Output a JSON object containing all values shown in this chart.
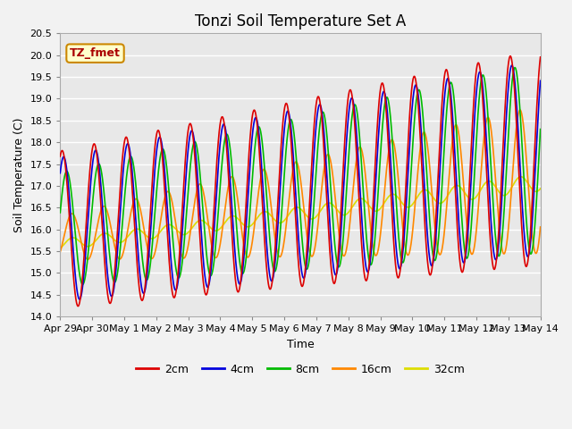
{
  "title": "Tonzi Soil Temperature Set A",
  "xlabel": "Time",
  "ylabel": "Soil Temperature (C)",
  "ylim": [
    14.0,
    20.5
  ],
  "xlim": [
    0,
    15
  ],
  "xtick_labels": [
    "Apr 29",
    "Apr 30",
    "May 1",
    "May 2",
    "May 3",
    "May 4",
    "May 5",
    "May 6",
    "May 7",
    "May 8",
    "May 9",
    "May 10",
    "May 11",
    "May 12",
    "May 13",
    "May 14"
  ],
  "xtick_positions": [
    0,
    1,
    2,
    3,
    4,
    5,
    6,
    7,
    8,
    9,
    10,
    11,
    12,
    13,
    14,
    15
  ],
  "ytick_values": [
    14.0,
    14.5,
    15.0,
    15.5,
    16.0,
    16.5,
    17.0,
    17.5,
    18.0,
    18.5,
    19.0,
    19.5,
    20.0,
    20.5
  ],
  "legend_labels": [
    "2cm",
    "4cm",
    "8cm",
    "16cm",
    "32cm"
  ],
  "legend_colors": [
    "#dd0000",
    "#0000dd",
    "#00bb00",
    "#ff8800",
    "#dddd00"
  ],
  "annotation_text": "TZ_fmet",
  "annotation_color": "#aa0000",
  "annotation_bg": "#ffffcc",
  "annotation_border": "#cc8800",
  "plot_bg_color": "#e8e8e8",
  "fig_bg_color": "#f2f2f2",
  "title_fontsize": 12,
  "axis_label_fontsize": 9,
  "tick_fontsize": 8
}
